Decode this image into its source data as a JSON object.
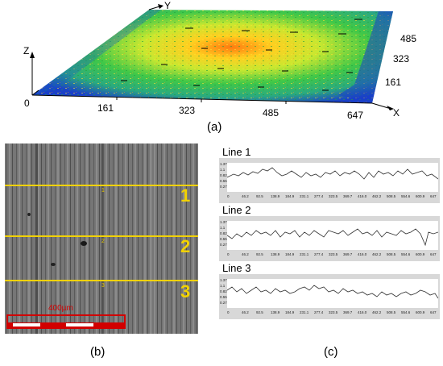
{
  "panel_a": {
    "caption": "(a)",
    "axis_x_label": "X",
    "axis_y_label": "Y",
    "axis_z_label": "Z",
    "x_ticks": [
      "0",
      "161",
      "323",
      "485",
      "647"
    ],
    "y_ticks": [
      "161",
      "323",
      "485"
    ],
    "colors": {
      "low": "#1030c0",
      "mid": "#30c040",
      "high": "#ffd020",
      "peak": "#ff6010"
    }
  },
  "panel_b": {
    "caption": "(b)",
    "line_labels": [
      "1",
      "2",
      "3"
    ],
    "small_labels": [
      "1",
      "2",
      "3"
    ],
    "scale_bar_text": "400µm",
    "line_color": "#f2d200",
    "scale_bar_color": "#d10000"
  },
  "panel_c": {
    "caption": "(c)",
    "profiles": [
      {
        "title": "Line 1"
      },
      {
        "title": "Line 2"
      },
      {
        "title": "Line 3"
      }
    ],
    "y_ticks": [
      "1.37",
      "1.1",
      "0.82",
      "0.55",
      "0.27"
    ],
    "x_ticks": [
      "0",
      "46.2",
      "92.5",
      "138.9",
      "184.9",
      "231.1",
      "277.4",
      "323.5",
      "369.7",
      "416.0",
      "462.2",
      "508.5",
      "554.6",
      "600.9",
      "647"
    ]
  }
}
